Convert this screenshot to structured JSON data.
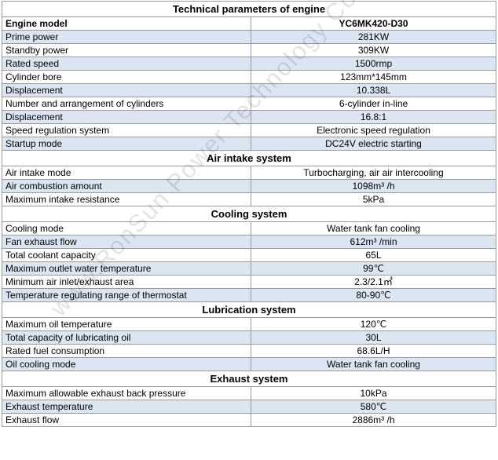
{
  "title": "Technical parameters of engine",
  "watermark": "www.RonSun Power Technology Co.,",
  "engine": {
    "model_label": "Engine model",
    "model_value": "YC6MK420-D30",
    "rows": [
      {
        "label": "Prime power",
        "value": "281KW"
      },
      {
        "label": "Standby power",
        "value": "309KW"
      },
      {
        "label": "Rated speed",
        "value": "1500rmp"
      },
      {
        "label": "Cylinder bore",
        "value": "123mm*145mm"
      },
      {
        "label": "Displacement",
        "value": "10.338L"
      },
      {
        "label": "Number and arrangement of cylinders",
        "value": "6-cylinder in-line"
      },
      {
        "label": "Displacement",
        "value": "16.8:1"
      },
      {
        "label": "Speed regulation system",
        "value": "Electronic speed regulation"
      },
      {
        "label": "Startup mode",
        "value": "DC24V electric starting"
      }
    ]
  },
  "air": {
    "title": "Air intake system",
    "rows": [
      {
        "label": "Air intake mode",
        "value": "Turbocharging, air air intercooling"
      },
      {
        "label": "Air combustion amount",
        "value": "1098m³ /h"
      },
      {
        "label": "Maximum intake resistance",
        "value": "5kPa"
      }
    ]
  },
  "cooling": {
    "title": "Cooling system",
    "rows": [
      {
        "label": "Cooling mode",
        "value": "Water tank fan cooling"
      },
      {
        "label": "Fan exhaust flow",
        "value": "612m³  /min"
      },
      {
        "label": "Total coolant capacity",
        "value": "65L"
      },
      {
        "label": "Maximum outlet water temperature",
        "value": "99℃"
      },
      {
        "label": "Minimum air inlet/exhaust area",
        "value": "2.3/2.1㎡"
      },
      {
        "label": "Temperature regulating range of thermostat",
        "value": "80-90℃"
      }
    ]
  },
  "lubrication": {
    "title": "Lubrication system",
    "rows": [
      {
        "label": "Maximum oil temperature",
        "value": "120℃"
      },
      {
        "label": "Total capacity of lubricating oil",
        "value": "30L"
      },
      {
        "label": "Rated fuel consumption",
        "value": "68.6L/H"
      },
      {
        "label": "Oil cooling mode",
        "value": "Water tank fan cooling"
      }
    ]
  },
  "exhaust": {
    "title": "Exhaust system",
    "rows": [
      {
        "label": "Maximum allowable exhaust back pressure",
        "value": "10kPa"
      },
      {
        "label": "Exhaust temperature",
        "value": "580℃"
      },
      {
        "label": "Exhaust flow",
        "value": "2886m³ /h"
      }
    ]
  },
  "colors": {
    "alt_row": "#dce6f2",
    "border": "#9a9a9a"
  }
}
